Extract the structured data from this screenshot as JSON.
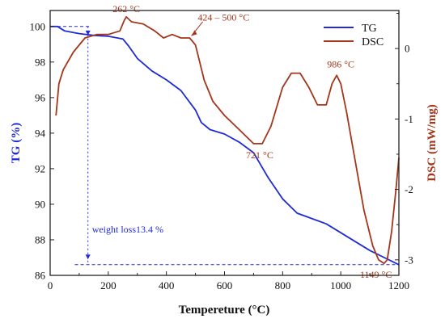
{
  "chart_data": {
    "type": "line",
    "xlabel": "Tempereture (°C)",
    "y1label": "TG (%)",
    "y2label": "DSC (mW/mg)",
    "xlim": [
      0,
      1200
    ],
    "y1lim": [
      86,
      100.9
    ],
    "y2lim": [
      -3.22,
      0.54
    ],
    "xticks": [
      "0",
      "200",
      "400",
      "600",
      "800",
      "1000",
      "1200"
    ],
    "y1ticks": [
      "86",
      "88",
      "90",
      "92",
      "94",
      "96",
      "98",
      "100"
    ],
    "y2ticks": [
      "-3",
      "-2",
      "-1",
      "0"
    ],
    "colors": {
      "TG": "#1f2bd6",
      "DSC": "#a3361b",
      "axes": "#222222"
    },
    "legend": {
      "position": "top-right",
      "entries": [
        "TG",
        "DSC"
      ]
    },
    "series": [
      {
        "name": "TG",
        "axis": "left",
        "x": [
          0,
          25,
          50,
          100,
          150,
          200,
          250,
          270,
          300,
          350,
          400,
          450,
          500,
          520,
          550,
          600,
          650,
          700,
          750,
          800,
          850,
          900,
          950,
          1000,
          1050,
          1100,
          1150,
          1200
        ],
        "values": [
          100,
          100,
          99.75,
          99.6,
          99.5,
          99.45,
          99.3,
          98.9,
          98.2,
          97.5,
          97.0,
          96.4,
          95.3,
          94.6,
          94.2,
          93.95,
          93.5,
          92.9,
          91.5,
          90.3,
          89.5,
          89.2,
          88.9,
          88.4,
          87.9,
          87.4,
          87.0,
          86.6
        ]
      },
      {
        "name": "DSC",
        "axis": "right",
        "x": [
          20,
          30,
          45,
          80,
          120,
          160,
          200,
          240,
          255,
          262,
          280,
          320,
          360,
          390,
          420,
          450,
          480,
          500,
          530,
          560,
          600,
          650,
          700,
          730,
          760,
          800,
          830,
          860,
          890,
          920,
          950,
          970,
          986,
          1000,
          1020,
          1050,
          1080,
          1110,
          1130,
          1149,
          1160,
          1175,
          1190,
          1200
        ],
        "values": [
          -0.95,
          -0.5,
          -0.3,
          -0.05,
          0.15,
          0.2,
          0.2,
          0.25,
          0.4,
          0.45,
          0.38,
          0.35,
          0.25,
          0.15,
          0.2,
          0.15,
          0.15,
          0.05,
          -0.45,
          -0.75,
          -0.95,
          -1.15,
          -1.35,
          -1.35,
          -1.1,
          -0.55,
          -0.35,
          -0.35,
          -0.55,
          -0.8,
          -0.8,
          -0.5,
          -0.38,
          -0.5,
          -0.9,
          -1.6,
          -2.3,
          -2.8,
          -3.0,
          -3.05,
          -3.0,
          -2.6,
          -2.0,
          -1.55
        ]
      }
    ],
    "annotations": [
      {
        "text": "262 °C",
        "x": 262,
        "y": 0.45,
        "axis": "right",
        "color": "#a3361b"
      },
      {
        "text": "424 – 500 °C",
        "x": 480,
        "y": 0.2,
        "axis": "right",
        "color": "#a3361b"
      },
      {
        "text": "721 °C",
        "x": 721,
        "y": -1.4,
        "axis": "right",
        "color": "#a3361b"
      },
      {
        "text": "986 °C",
        "x": 986,
        "y": -0.38,
        "axis": "right",
        "color": "#a3361b"
      },
      {
        "text": "1149 °C",
        "x": 1149,
        "y": -3.05,
        "axis": "right",
        "color": "#a3361b"
      },
      {
        "text": "weight loss13.4 %",
        "x": 130,
        "y": 88.4,
        "axis": "left",
        "color": "#1f2bd6"
      }
    ]
  }
}
